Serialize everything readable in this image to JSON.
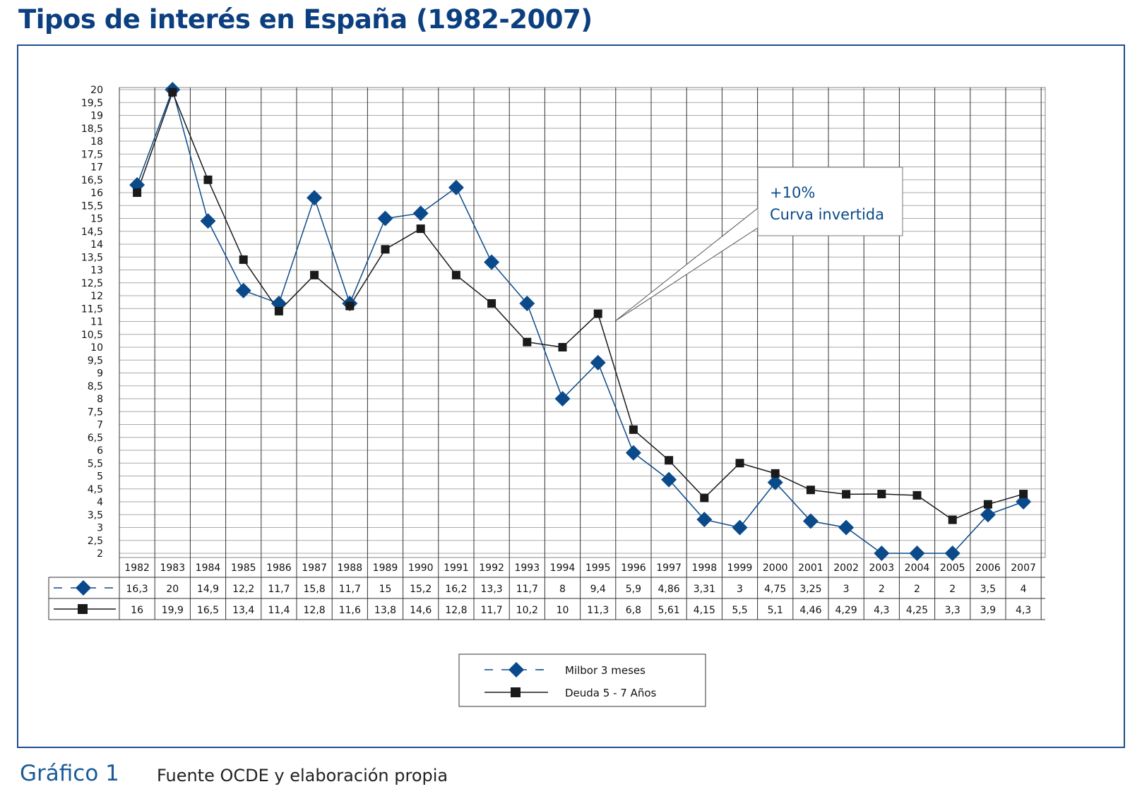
{
  "title": "Tipos de interés en España (1982-2007)",
  "footer": {
    "label": "Gráfico 1",
    "source": "Fuente OCDE y elaboración propia"
  },
  "annotation": {
    "line1": "+10%",
    "line2": "Curva invertida"
  },
  "colors": {
    "blue": "#0b4a8a",
    "black": "#1a1a1a",
    "frame": "#1d4e8a",
    "grid": "#aaaaaa"
  },
  "chart_data": {
    "type": "line",
    "ylim": [
      2,
      20
    ],
    "yticks": [
      "2",
      "2,5",
      "3",
      "3,5",
      "4",
      "4,5",
      "5",
      "5,5",
      "6",
      "6,5",
      "7",
      "7,5",
      "8",
      "8,5",
      "9",
      "9,5",
      "10",
      "10,5",
      "11",
      "11,5",
      "12",
      "12,5",
      "13",
      "13,5",
      "14",
      "14,5",
      "15",
      "15,5",
      "16",
      "16,5",
      "17",
      "17,5",
      "18",
      "18,5",
      "19",
      "19,5",
      "20"
    ],
    "grid": true,
    "legend_position": "bottom-center",
    "categories": [
      "1982",
      "1983",
      "1984",
      "1985",
      "1986",
      "1987",
      "1988",
      "1989",
      "1990",
      "1991",
      "1992",
      "1993",
      "1994",
      "1995",
      "1996",
      "1997",
      "1998",
      "1999",
      "2000",
      "2001",
      "2002",
      "2003",
      "2004",
      "2005",
      "2006",
      "2007"
    ],
    "series": [
      {
        "name": "Milbor 3 meses",
        "marker": "diamond",
        "color": "#0b4a8a",
        "values": [
          16.3,
          20,
          14.9,
          12.2,
          11.7,
          15.8,
          11.7,
          15,
          15.2,
          16.2,
          13.3,
          11.7,
          8,
          9.4,
          5.9,
          4.86,
          3.31,
          3,
          4.75,
          3.25,
          3,
          2,
          2,
          2,
          3.5,
          4
        ],
        "labels": [
          "16,3",
          "20",
          "14,9",
          "12,2",
          "11,7",
          "15,8",
          "11,7",
          "15",
          "15,2",
          "16,2",
          "13,3",
          "11,7",
          "8",
          "9,4",
          "5,9",
          "4,86",
          "3,31",
          "3",
          "4,75",
          "3,25",
          "3",
          "2",
          "2",
          "2",
          "3,5",
          "4"
        ]
      },
      {
        "name": "Deuda 5 - 7 Años",
        "marker": "square",
        "color": "#1a1a1a",
        "values": [
          16,
          19.9,
          16.5,
          13.4,
          11.4,
          12.8,
          11.6,
          13.8,
          14.6,
          12.8,
          11.7,
          10.2,
          10,
          11.3,
          6.8,
          5.61,
          4.15,
          5.5,
          5.1,
          4.46,
          4.29,
          4.3,
          4.25,
          3.3,
          3.9,
          4.3
        ],
        "labels": [
          "16",
          "19,9",
          "16,5",
          "13,4",
          "11,4",
          "12,8",
          "11,6",
          "13,8",
          "14,6",
          "12,8",
          "11,7",
          "10,2",
          "10",
          "11,3",
          "6,8",
          "5,61",
          "4,15",
          "5,5",
          "5,1",
          "4,46",
          "4,29",
          "4,3",
          "4,25",
          "3,3",
          "3,9",
          "4,3"
        ]
      }
    ]
  }
}
